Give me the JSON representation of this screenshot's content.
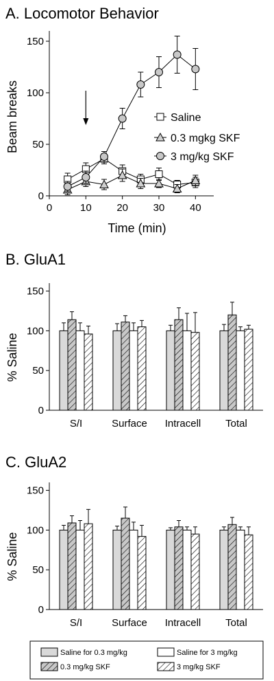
{
  "chart_data": [
    {
      "type": "line",
      "panel_title": "A. Locomotor Behavior",
      "xlabel": "Time (min)",
      "ylabel": "Beam breaks",
      "xlim": [
        0,
        45
      ],
      "ylim": [
        0,
        160
      ],
      "xticks": [
        0,
        10,
        20,
        30,
        40
      ],
      "yticks": [
        0,
        50,
        100,
        150
      ],
      "x": [
        5,
        10,
        15,
        20,
        25,
        30,
        35,
        40
      ],
      "annotation": "arrow at time 10",
      "legend_position": "right",
      "series": [
        {
          "name": "Saline",
          "marker": "square",
          "values": [
            16,
            26,
            36,
            24,
            16,
            21,
            11,
            13
          ],
          "errors": [
            6,
            6,
            5,
            6,
            5,
            6,
            4,
            5
          ]
        },
        {
          "name": "0.3 mgkg SKF",
          "marker": "triangle",
          "values": [
            6,
            14,
            11,
            20,
            12,
            12,
            7,
            15
          ],
          "errors": [
            5,
            5,
            5,
            6,
            5,
            4,
            4,
            5
          ]
        },
        {
          "name": "3 mg/kg SKF",
          "marker": "circle",
          "values": [
            9,
            18,
            38,
            75,
            108,
            120,
            137,
            123
          ],
          "errors": [
            5,
            6,
            5,
            10,
            12,
            15,
            18,
            20
          ]
        }
      ]
    },
    {
      "type": "bar",
      "panel_title": "B. GluA1",
      "ylabel": "% Saline",
      "ylim": [
        0,
        160
      ],
      "yticks": [
        0,
        50,
        100,
        150
      ],
      "categories": [
        "S/I",
        "Surface",
        "Intracell",
        "Total"
      ],
      "series": [
        {
          "values": [
            100,
            100,
            100,
            100
          ],
          "errors": [
            10,
            9,
            7,
            8
          ]
        },
        {
          "values": [
            114,
            111,
            114,
            120
          ],
          "errors": [
            10,
            8,
            15,
            16
          ]
        },
        {
          "values": [
            100,
            100,
            100,
            100
          ],
          "errors": [
            10,
            10,
            22,
            5
          ]
        },
        {
          "values": [
            96,
            105,
            98,
            102
          ],
          "errors": [
            10,
            8,
            25,
            5
          ]
        }
      ]
    },
    {
      "type": "bar",
      "panel_title": "C. GluA2",
      "ylabel": "% Saline",
      "ylim": [
        0,
        160
      ],
      "yticks": [
        0,
        50,
        100,
        150
      ],
      "categories": [
        "S/I",
        "Surface",
        "Intracell",
        "Total"
      ],
      "series": [
        {
          "values": [
            100,
            100,
            100,
            100
          ],
          "errors": [
            6,
            5,
            3,
            4
          ]
        },
        {
          "values": [
            109,
            115,
            104,
            107
          ],
          "errors": [
            9,
            14,
            8,
            9
          ]
        },
        {
          "values": [
            100,
            100,
            100,
            100
          ],
          "errors": [
            12,
            10,
            4,
            4
          ]
        },
        {
          "values": [
            108,
            92,
            95,
            94
          ],
          "errors": [
            18,
            14,
            9,
            10
          ]
        }
      ]
    }
  ],
  "legend": {
    "items": [
      {
        "label": "Saline for 0.3 mg/kg",
        "fill": "gray"
      },
      {
        "label": "Saline for 3 mg/kg",
        "fill": "white"
      },
      {
        "label": "0.3 mg/kg SKF",
        "fill": "gray-hatched"
      },
      {
        "label": "3 mg/kg SKF",
        "fill": "white-hatched"
      }
    ]
  },
  "colors": {
    "gray": "#d9d9d9",
    "white": "#ffffff",
    "marker_fill_circle": "#c8c8c8",
    "ink": "#000000"
  }
}
